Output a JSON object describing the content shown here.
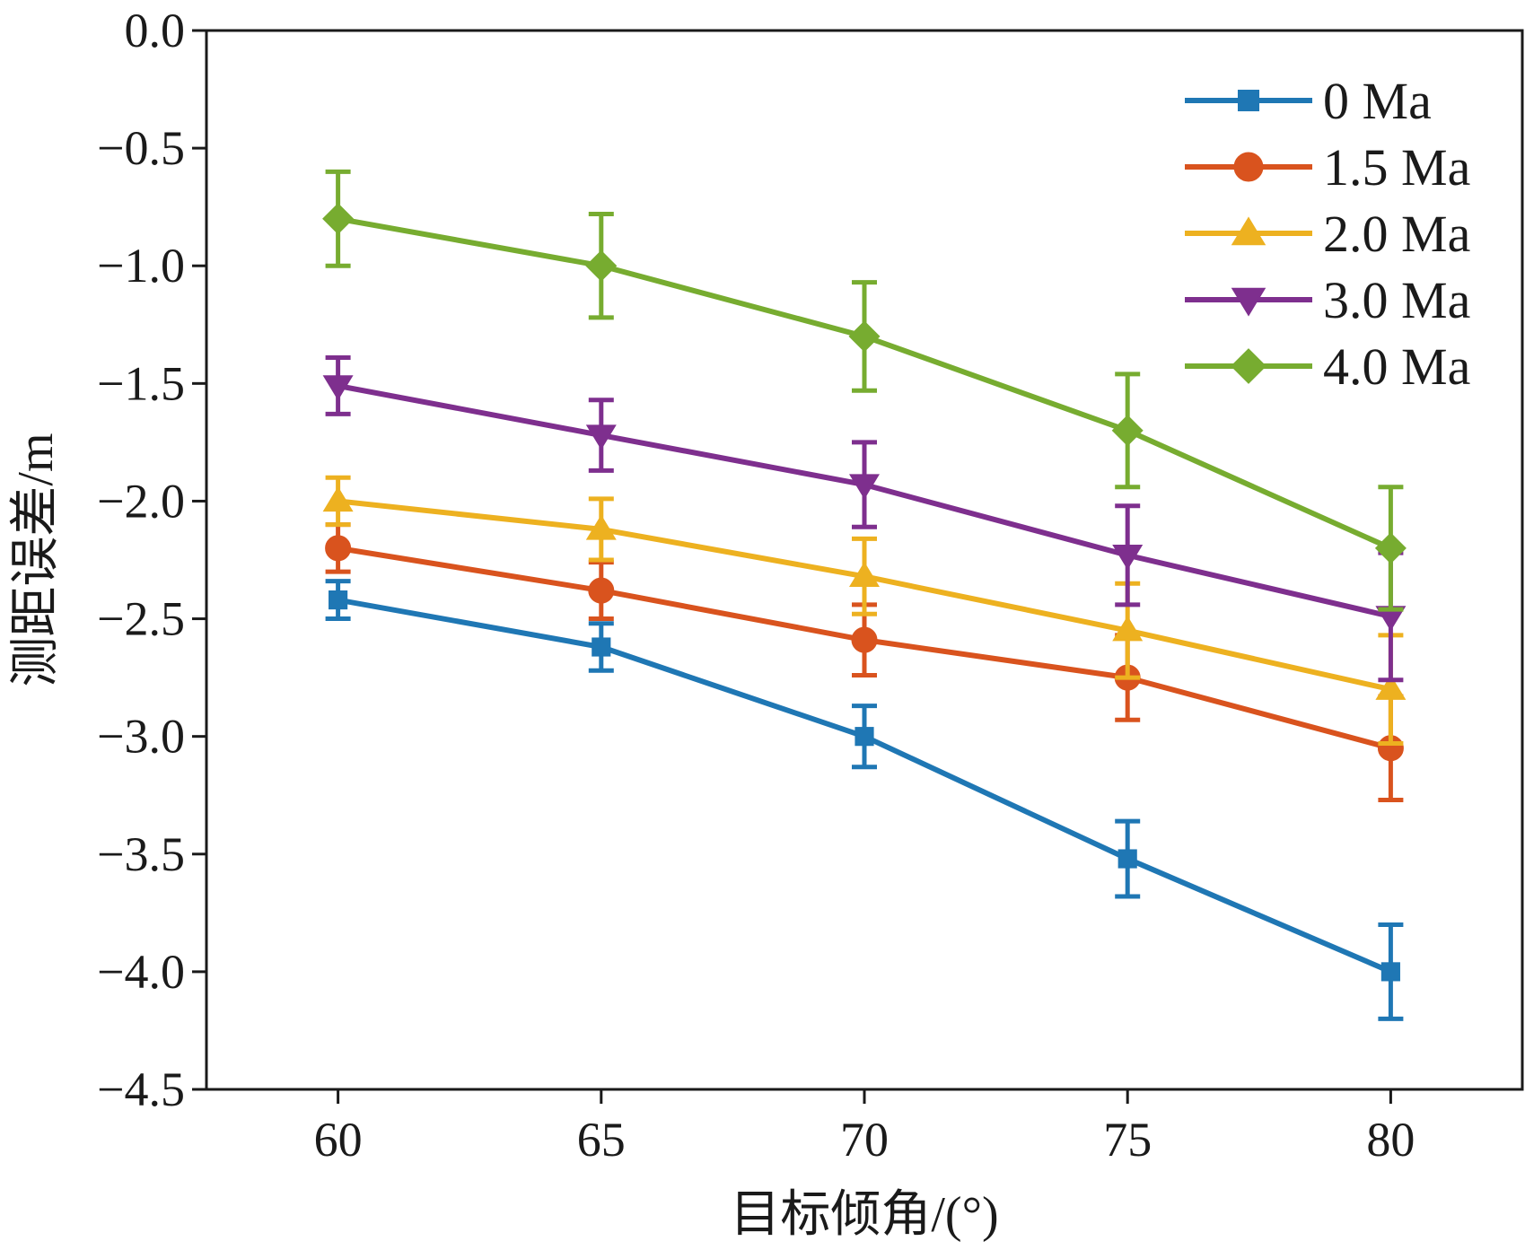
{
  "chart_data": {
    "type": "line",
    "xlabel": "目标倾角/(°)",
    "ylabel": "测距误差/m",
    "x": [
      60,
      65,
      70,
      75,
      80
    ],
    "x_ticks": [
      "60",
      "65",
      "70",
      "75",
      "80"
    ],
    "xlim": [
      57.5,
      82.5
    ],
    "y_ticks": [
      "0.0",
      "−0.5",
      "−1.0",
      "−1.5",
      "−2.0",
      "−2.5",
      "−3.0",
      "−3.5",
      "−4.0",
      "−4.5"
    ],
    "ylim": [
      -4.5,
      0.0
    ],
    "grid": false,
    "legend_position": "top-right",
    "series": [
      {
        "name": "0 Ma",
        "color": "#1f77b4",
        "marker": "square",
        "values": [
          -2.42,
          -2.62,
          -3.0,
          -3.52,
          -4.0
        ],
        "errors": [
          0.08,
          0.1,
          0.13,
          0.16,
          0.2
        ]
      },
      {
        "name": "1.5 Ma",
        "color": "#d9531e",
        "marker": "circle",
        "values": [
          -2.2,
          -2.38,
          -2.59,
          -2.75,
          -3.05
        ],
        "errors": [
          0.1,
          0.12,
          0.15,
          0.18,
          0.22
        ]
      },
      {
        "name": "2.0 Ma",
        "color": "#edb120",
        "marker": "triangle-up",
        "values": [
          -2.0,
          -2.12,
          -2.32,
          -2.55,
          -2.8
        ],
        "errors": [
          0.1,
          0.13,
          0.16,
          0.2,
          0.23
        ]
      },
      {
        "name": "3.0 Ma",
        "color": "#7e2f8e",
        "marker": "triangle-down",
        "values": [
          -1.51,
          -1.72,
          -1.93,
          -2.23,
          -2.49
        ],
        "errors": [
          0.12,
          0.15,
          0.18,
          0.21,
          0.27
        ]
      },
      {
        "name": "4.0 Ma",
        "color": "#77ac30",
        "marker": "diamond",
        "values": [
          -0.8,
          -1.0,
          -1.3,
          -1.7,
          -2.2
        ],
        "errors": [
          0.2,
          0.22,
          0.23,
          0.24,
          0.26
        ]
      }
    ]
  }
}
